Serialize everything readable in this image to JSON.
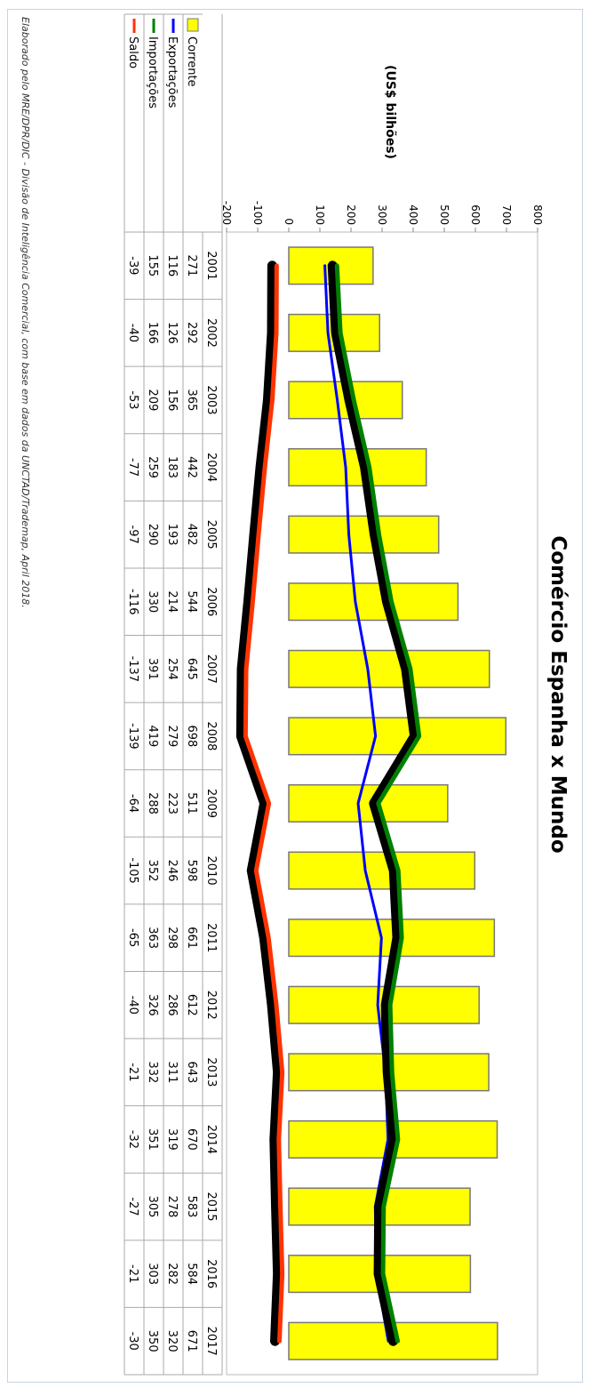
{
  "chart_data": {
    "type": "bar",
    "title": "Comércio Espanha x Mundo",
    "subtitle": "(US$ bilhões)",
    "categories": [
      "2001",
      "2002",
      "2003",
      "2004",
      "2005",
      "2006",
      "2007",
      "2008",
      "2009",
      "2010",
      "2011",
      "2012",
      "2013",
      "2014",
      "2015",
      "2016",
      "2017"
    ],
    "series": [
      {
        "name": "Corrente",
        "kind": "bar",
        "color": "#ffff00",
        "values": [
          271,
          292,
          365,
          442,
          482,
          544,
          645,
          698,
          511,
          598,
          661,
          612,
          643,
          670,
          583,
          584,
          671
        ]
      },
      {
        "name": "Exportações",
        "kind": "line",
        "color": "#0000ff",
        "values": [
          116,
          126,
          156,
          183,
          193,
          214,
          254,
          279,
          223,
          246,
          298,
          286,
          311,
          319,
          278,
          282,
          320
        ]
      },
      {
        "name": "Importações",
        "kind": "line",
        "color": "#008000",
        "values": [
          155,
          166,
          209,
          259,
          290,
          330,
          391,
          419,
          288,
          352,
          363,
          326,
          332,
          351,
          305,
          303,
          350
        ]
      },
      {
        "name": "Saldo",
        "kind": "line",
        "color": "#ff3300",
        "values": [
          -39,
          -40,
          -53,
          -77,
          -97,
          -116,
          -137,
          -139,
          -64,
          -105,
          -65,
          -40,
          -21,
          -32,
          -27,
          -21,
          -30
        ]
      }
    ],
    "y_ticks": [
      "-200",
      "-100",
      "0",
      "100",
      "200",
      "300",
      "400",
      "500",
      "600",
      "700",
      "800"
    ],
    "ylim": [
      -200,
      800
    ],
    "grid": false,
    "legend_position": "table-below",
    "orientation": "rotated-90-clockwise"
  },
  "footnote": "Elaborado pelo MRE/DPR/DIC - Divisão de Inteligência Comercial, com base em dados da UNCTAD/Trademap, April 2018."
}
